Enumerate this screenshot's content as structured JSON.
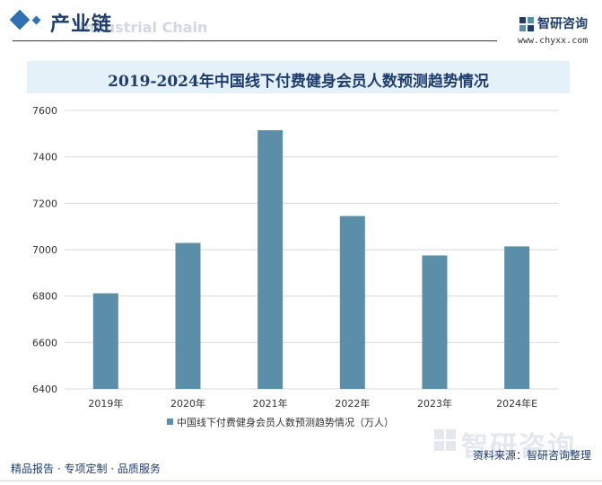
{
  "header": {
    "section_title": "产业链",
    "section_subtitle": "Industrial Chain",
    "brand_name": "智研咨询",
    "brand_url": "www.chyxx.com"
  },
  "colors": {
    "accent": "#1e3d6e",
    "bar": "#5b8ea8",
    "title_band": "#e4f1f8"
  },
  "chart_data": {
    "type": "bar",
    "title": "2019-2024年中国线下付费健身会员人数预测趋势情况",
    "categories": [
      "2019年",
      "2020年",
      "2021年",
      "2022年",
      "2023年",
      "2024年E"
    ],
    "series": [
      {
        "name": "中国线下付费健身会员人数预测趋势情况（万人）",
        "values": [
          6812,
          7029,
          7515,
          7145,
          6975,
          7014
        ]
      }
    ],
    "ylim": [
      6400,
      7600
    ],
    "yticks": [
      6400,
      6600,
      6800,
      7000,
      7200,
      7400,
      7600
    ],
    "grid": true,
    "legend": "bottom"
  },
  "footer": {
    "tagline": "精品报告 · 专项定制 · 品质服务",
    "source": "资料来源：智研咨询整理",
    "watermark": "智研咨询"
  }
}
